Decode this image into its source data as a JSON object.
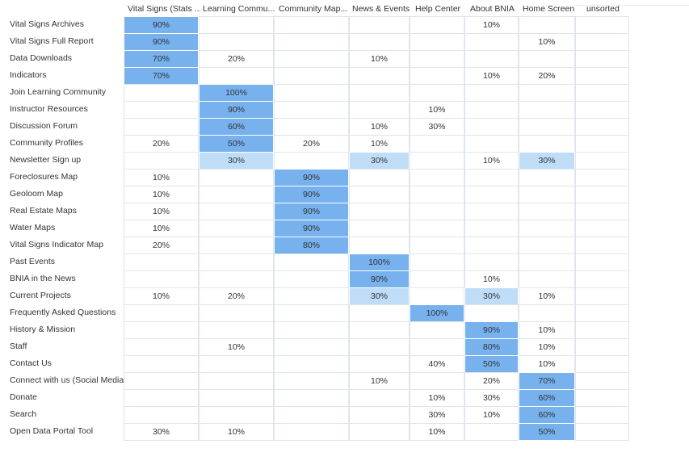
{
  "columns": [
    "Vital Signs (Stats ...",
    "Learning Commu...",
    "Community Map...",
    "News & Events",
    "Help Center",
    "About BNIA",
    "Home Screen",
    "unsorted"
  ],
  "rows": [
    {
      "label": "Vital Signs Archives",
      "cells": [
        "90%",
        "",
        "",
        "",
        "",
        "10%",
        "",
        ""
      ]
    },
    {
      "label": "Vital Signs Full Report",
      "cells": [
        "90%",
        "",
        "",
        "",
        "",
        "",
        "10%",
        ""
      ]
    },
    {
      "label": "Data Downloads",
      "cells": [
        "70%",
        "20%",
        "",
        "10%",
        "",
        "",
        "",
        ""
      ]
    },
    {
      "label": "Indicators",
      "cells": [
        "70%",
        "",
        "",
        "",
        "",
        "10%",
        "20%",
        ""
      ]
    },
    {
      "label": "Join Learning Community",
      "cells": [
        "",
        "100%",
        "",
        "",
        "",
        "",
        "",
        ""
      ]
    },
    {
      "label": "Instructor Resources",
      "cells": [
        "",
        "90%",
        "",
        "",
        "10%",
        "",
        "",
        ""
      ]
    },
    {
      "label": "Discussion Forum",
      "cells": [
        "",
        "60%",
        "",
        "10%",
        "30%",
        "",
        "",
        ""
      ]
    },
    {
      "label": "Community Profiles",
      "cells": [
        "20%",
        "50%",
        "20%",
        "10%",
        "",
        "",
        "",
        ""
      ]
    },
    {
      "label": "Newsletter Sign up",
      "cells": [
        "",
        "30%",
        "",
        "30%",
        "",
        "10%",
        "30%",
        ""
      ]
    },
    {
      "label": "Foreclosures Map",
      "cells": [
        "10%",
        "",
        "90%",
        "",
        "",
        "",
        "",
        ""
      ]
    },
    {
      "label": "Geoloom Map",
      "cells": [
        "10%",
        "",
        "90%",
        "",
        "",
        "",
        "",
        ""
      ]
    },
    {
      "label": "Real Estate Maps",
      "cells": [
        "10%",
        "",
        "90%",
        "",
        "",
        "",
        "",
        ""
      ]
    },
    {
      "label": "Water Maps",
      "cells": [
        "10%",
        "",
        "90%",
        "",
        "",
        "",
        "",
        ""
      ]
    },
    {
      "label": "Vital Signs Indicator Map",
      "cells": [
        "20%",
        "",
        "80%",
        "",
        "",
        "",
        "",
        ""
      ]
    },
    {
      "label": "Past Events",
      "cells": [
        "",
        "",
        "",
        "100%",
        "",
        "",
        "",
        ""
      ]
    },
    {
      "label": "BNIA in the News",
      "cells": [
        "",
        "",
        "",
        "90%",
        "",
        "10%",
        "",
        ""
      ]
    },
    {
      "label": "Current Projects",
      "cells": [
        "10%",
        "20%",
        "",
        "30%",
        "",
        "30%",
        "10%",
        ""
      ]
    },
    {
      "label": "Frequently Asked Questions",
      "cells": [
        "",
        "",
        "",
        "",
        "100%",
        "",
        "",
        ""
      ]
    },
    {
      "label": "History & Mission",
      "cells": [
        "",
        "",
        "",
        "",
        "",
        "90%",
        "10%",
        ""
      ]
    },
    {
      "label": "Staff",
      "cells": [
        "",
        "10%",
        "",
        "",
        "",
        "80%",
        "10%",
        ""
      ]
    },
    {
      "label": "Contact Us",
      "cells": [
        "",
        "",
        "",
        "",
        "40%",
        "50%",
        "10%",
        ""
      ]
    },
    {
      "label": "Connect with us (Social Media)",
      "cells": [
        "",
        "",
        "",
        "10%",
        "",
        "20%",
        "70%",
        ""
      ]
    },
    {
      "label": "Donate",
      "cells": [
        "",
        "",
        "",
        "",
        "10%",
        "30%",
        "60%",
        ""
      ]
    },
    {
      "label": "Search",
      "cells": [
        "",
        "",
        "",
        "",
        "30%",
        "10%",
        "60%",
        ""
      ]
    },
    {
      "label": "Open Data Portal Tool",
      "cells": [
        "30%",
        "10%",
        "",
        "",
        "10%",
        "",
        "50%",
        ""
      ]
    }
  ],
  "highlight": {
    "strong": [
      [
        0,
        0
      ],
      [
        1,
        0
      ],
      [
        2,
        0
      ],
      [
        3,
        0
      ],
      [
        4,
        1
      ],
      [
        5,
        1
      ],
      [
        6,
        1
      ],
      [
        7,
        1
      ],
      [
        9,
        2
      ],
      [
        10,
        2
      ],
      [
        11,
        2
      ],
      [
        12,
        2
      ],
      [
        13,
        2
      ],
      [
        14,
        3
      ],
      [
        15,
        3
      ],
      [
        17,
        4
      ],
      [
        18,
        5
      ],
      [
        19,
        5
      ],
      [
        20,
        5
      ],
      [
        21,
        6
      ],
      [
        22,
        6
      ],
      [
        23,
        6
      ],
      [
        24,
        6
      ]
    ],
    "light": [
      [
        8,
        1
      ],
      [
        8,
        3
      ],
      [
        8,
        6
      ],
      [
        16,
        3
      ],
      [
        16,
        5
      ]
    ]
  },
  "colors": {
    "strong": "#77b1ee",
    "light": "#c0ddf8",
    "grid_line": "#dfe5ec"
  }
}
